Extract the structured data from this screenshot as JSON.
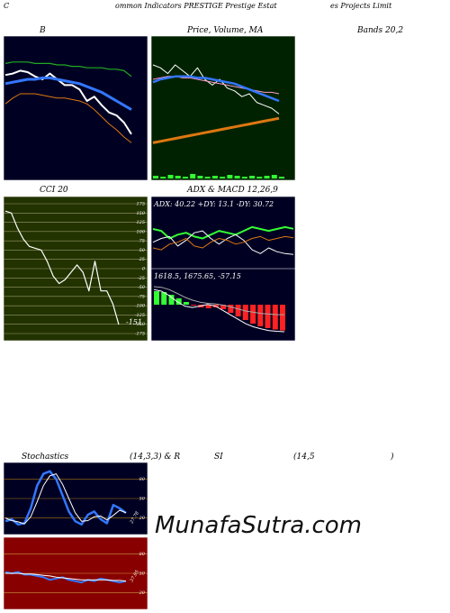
{
  "header": {
    "left": "C",
    "mid": "ommon  Indicators PRESTIGE Prestige  Estat",
    "right": "es Projects Limit"
  },
  "titles": {
    "b": "B",
    "price": "Price,  Volume,  MA",
    "bands": "Bands 20,2",
    "cci": "CCI 20",
    "adx": "ADX  & MACD 12,26,9",
    "stoch": "Stochastics",
    "stoch_params": "(14,3,3) & R",
    "si": "SI",
    "rsi_params": "(14,5",
    "rsi_close": ")"
  },
  "readouts": {
    "adx": "ADX: 40.22  +DY: 13.1 -DY: 30.72",
    "macd": "1618.5,   1675.65,   -57.15",
    "cci_value": "-151",
    "stoch_value": "27.78",
    "rsi_value": "37.95"
  },
  "watermark": "MunafaSutra.com",
  "colors": {
    "dark_panel": "#000022",
    "price_panel": "#002200",
    "cci_panel": "#223300",
    "rsi_panel": "#880000",
    "white": "#ffffff",
    "blue": "#3377ff",
    "green": "#22aa22",
    "orange": "#dd7711",
    "bright_green": "#33ff33",
    "red": "#ff2222"
  },
  "chart_data": [
    {
      "type": "line",
      "title": "B",
      "series": [
        {
          "values": [
            73,
            74,
            76,
            75,
            72,
            70,
            74,
            70,
            66,
            66,
            63,
            55,
            58,
            52,
            47,
            45,
            40,
            32
          ]
        },
        {
          "values": [
            67,
            68,
            69,
            70,
            70,
            71,
            71,
            70,
            69,
            68,
            67,
            65,
            63,
            61,
            58,
            55,
            52,
            49
          ]
        },
        {
          "values": [
            81,
            82,
            82,
            82,
            81,
            81,
            81,
            80,
            80,
            79,
            79,
            78,
            78,
            78,
            77,
            77,
            76,
            72
          ]
        },
        {
          "values": [
            53,
            57,
            60,
            60,
            60,
            59,
            58,
            57,
            57,
            56,
            55,
            53,
            49,
            44,
            39,
            35,
            30,
            26
          ]
        }
      ]
    },
    {
      "type": "line",
      "title": "Price,  Volume,  MA",
      "series": [
        {
          "values": [
            80,
            78,
            74,
            80,
            76,
            72,
            78,
            70,
            66,
            70,
            64,
            62,
            58,
            60,
            54,
            52,
            50,
            46
          ]
        },
        {
          "values": [
            70,
            71,
            72,
            72,
            71,
            71,
            70,
            69,
            68,
            67,
            66,
            65,
            64,
            63,
            62,
            61,
            61,
            60
          ]
        },
        {
          "values": [
            68,
            70,
            71,
            72,
            72,
            72,
            71,
            71,
            70,
            69,
            68,
            67,
            65,
            63,
            61,
            59,
            57,
            55
          ]
        },
        {
          "values": [
            26,
            27,
            28,
            29,
            30,
            31,
            32,
            33,
            34,
            35,
            36,
            37,
            38,
            39,
            40,
            41,
            42,
            43
          ]
        }
      ],
      "volume": [
        3,
        2,
        4,
        3,
        2,
        5,
        3,
        2,
        3,
        2,
        4,
        3,
        2,
        3,
        2,
        3,
        4,
        2
      ]
    },
    {
      "type": "line",
      "title": "CCI 20",
      "y_ticks": [
        175,
        150,
        125,
        100,
        75,
        50,
        25,
        0,
        -25,
        -50,
        -75,
        -100,
        -125,
        -150,
        -175
      ],
      "ylim": [
        -175,
        175
      ],
      "series": [
        {
          "values": [
            155,
            150,
            110,
            80,
            60,
            55,
            50,
            20,
            -20,
            -40,
            -30,
            -10,
            10,
            -10,
            -60,
            20,
            -60,
            -60,
            -95,
            -151
          ]
        }
      ]
    },
    {
      "type": "line",
      "title": "ADX  & MACD 12,26,9",
      "series": [
        {
          "name": "ADX",
          "values": [
            40,
            38,
            30,
            34,
            36,
            32,
            30,
            34,
            38,
            36,
            34,
            38,
            42,
            40,
            38,
            40,
            42,
            40.22
          ]
        },
        {
          "name": "+DY",
          "values": [
            26,
            30,
            32,
            22,
            28,
            36,
            38,
            30,
            24,
            30,
            34,
            28,
            18,
            14,
            20,
            16,
            14,
            13.1
          ]
        },
        {
          "name": "-DY",
          "values": [
            20,
            18,
            24,
            26,
            30,
            22,
            20,
            26,
            30,
            28,
            24,
            26,
            30,
            32,
            28,
            30,
            32,
            30.72
          ]
        }
      ],
      "macd": {
        "macd": [
          1760,
          1755,
          1740,
          1720,
          1705,
          1700,
          1705,
          1710,
          1705,
          1690,
          1675,
          1660,
          1645,
          1635,
          1628,
          1622,
          1620,
          1618.5
        ],
        "signal": [
          1770,
          1768,
          1760,
          1748,
          1735,
          1725,
          1718,
          1714,
          1712,
          1708,
          1702,
          1695,
          1688,
          1684,
          1680,
          1678,
          1676,
          1675.65
        ],
        "histogram": [
          30,
          28,
          22,
          14,
          6,
          -2,
          -6,
          -8,
          -6,
          -10,
          -18,
          -26,
          -34,
          -42,
          -48,
          -52,
          -55,
          -57.15
        ]
      }
    },
    {
      "type": "line",
      "title": "Stochastics (14,3,3)",
      "y_ticks": [
        80,
        50,
        20
      ],
      "ylim": [
        0,
        100
      ],
      "series": [
        {
          "values": [
            15,
            18,
            10,
            12,
            35,
            70,
            88,
            92,
            80,
            55,
            30,
            15,
            10,
            25,
            30,
            18,
            12,
            40,
            35,
            27.78
          ]
        },
        {
          "values": [
            20,
            16,
            14,
            11,
            22,
            45,
            70,
            85,
            88,
            72,
            50,
            28,
            15,
            16,
            22,
            23,
            17,
            24,
            32,
            28
          ]
        }
      ]
    },
    {
      "type": "line",
      "title": "RSI (14,5)",
      "y_ticks": [
        80,
        50,
        20
      ],
      "ylim": [
        0,
        100
      ],
      "series": [
        {
          "values": [
            52,
            50,
            52,
            48,
            48,
            46,
            44,
            40,
            42,
            44,
            40,
            38,
            36,
            40,
            38,
            42,
            40,
            38,
            36,
            37.95
          ]
        },
        {
          "values": [
            50,
            50,
            50,
            49,
            49,
            48,
            47,
            46,
            44,
            43,
            42,
            41,
            40,
            40,
            40,
            40,
            40,
            39,
            39,
            38
          ]
        }
      ]
    }
  ]
}
